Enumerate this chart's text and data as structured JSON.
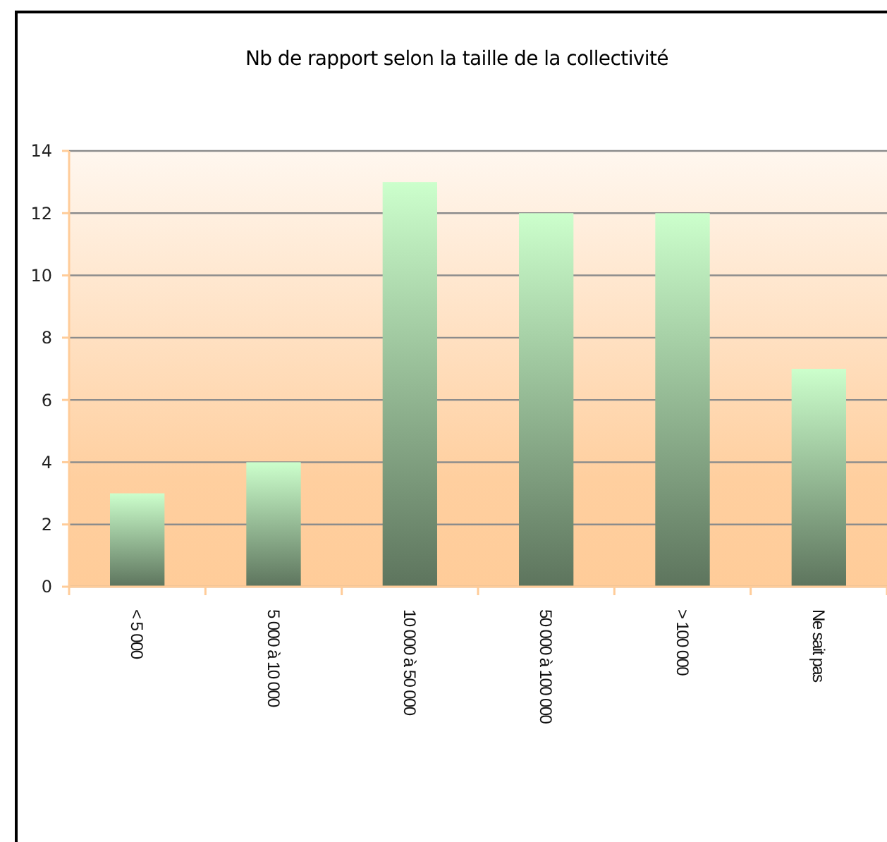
{
  "chart_data": {
    "type": "bar",
    "title": "Nb de rapport selon la taille de la collectivité",
    "categories": [
      "< 5 000",
      "5 000 à 10 000",
      "10 000 à 50 000",
      "50 000 à 100 000",
      "> 100 000",
      "Ne sait pas"
    ],
    "values": [
      3,
      4,
      13,
      12,
      12,
      7
    ],
    "color": "#ccffcc",
    "ylim": [
      0,
      14
    ],
    "yticks": [
      0,
      2,
      4,
      6,
      8,
      10,
      12,
      14
    ],
    "grid": "y"
  }
}
